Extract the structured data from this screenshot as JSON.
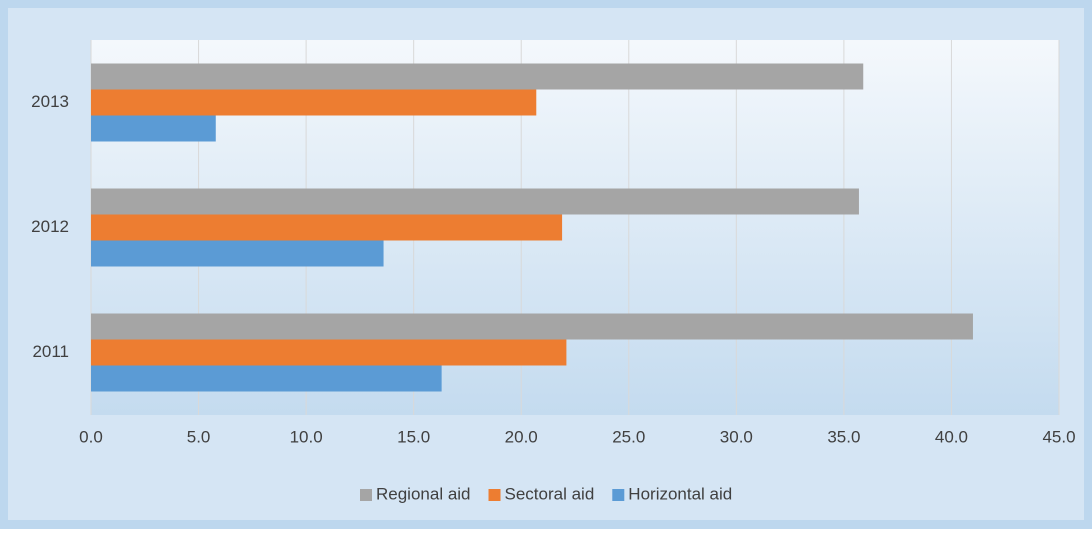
{
  "chart_data": {
    "type": "barh",
    "categories": [
      "2011",
      "2012",
      "2013"
    ],
    "series": [
      {
        "name": "Regional aid",
        "color": "#a5a5a5",
        "values": [
          41.0,
          35.7,
          35.9
        ]
      },
      {
        "name": "Sectoral aid",
        "color": "#ed7d31",
        "values": [
          22.1,
          21.9,
          20.7
        ]
      },
      {
        "name": "Horizontal aid",
        "color": "#5b9bd5",
        "values": [
          16.3,
          13.6,
          5.8
        ]
      }
    ],
    "xlim": [
      0,
      45
    ],
    "xticks": [
      {
        "value": 0,
        "label": "0.0"
      },
      {
        "value": 5,
        "label": "5.0"
      },
      {
        "value": 10,
        "label": "10.0"
      },
      {
        "value": 15,
        "label": "15.0"
      },
      {
        "value": 20,
        "label": "20.0"
      },
      {
        "value": 25,
        "label": "25.0"
      },
      {
        "value": 30,
        "label": "30.0"
      },
      {
        "value": 35,
        "label": "35.0"
      },
      {
        "value": 40,
        "label": "40.0"
      },
      {
        "value": 45,
        "label": "45.0"
      }
    ],
    "grid": true,
    "legend": "bottom"
  }
}
